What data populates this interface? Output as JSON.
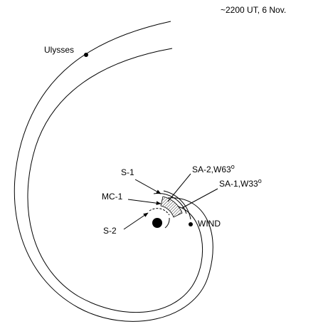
{
  "header": {
    "title": "~2200 UT, 6 Nov."
  },
  "labels": {
    "ulysses": "Ulysses",
    "s1": "S-1",
    "sa2": {
      "text": "SA-2,W63",
      "sup": "o"
    },
    "sa1": {
      "text": "SA-1,W33",
      "sup": "o"
    },
    "mc1": "MC-1",
    "wind": "WIND",
    "s2": "S-2"
  }
}
